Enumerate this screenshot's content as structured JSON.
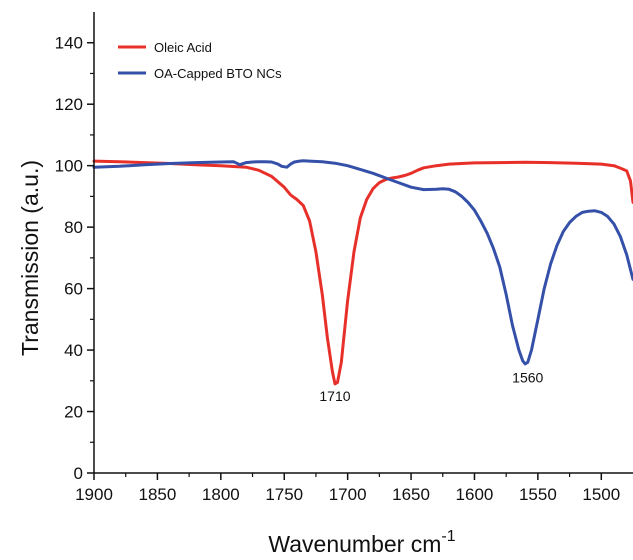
{
  "chart_data": {
    "type": "line",
    "xlabel": "Wavenumber cm",
    "xlabel_sup": "-1",
    "ylabel": "Transmission (a.u.)",
    "xlim": [
      1900,
      1475
    ],
    "ylim": [
      0,
      150
    ],
    "x_ticks": [
      1900,
      1850,
      1800,
      1750,
      1700,
      1650,
      1600,
      1550,
      1500
    ],
    "y_ticks": [
      0,
      20,
      40,
      60,
      80,
      100,
      120,
      140
    ],
    "grid": false,
    "legend_position": "top-left",
    "colors": {
      "oleic": "#e8302a",
      "oa_capped": "#3550a8"
    },
    "series": [
      {
        "name": "Oleic Acid",
        "x": [
          1900,
          1880,
          1860,
          1840,
          1820,
          1800,
          1780,
          1770,
          1760,
          1750,
          1745,
          1740,
          1735,
          1730,
          1725,
          1720,
          1716,
          1712,
          1710,
          1708,
          1705,
          1700,
          1695,
          1690,
          1685,
          1680,
          1675,
          1670,
          1665,
          1660,
          1655,
          1650,
          1645,
          1640,
          1630,
          1620,
          1600,
          1580,
          1560,
          1540,
          1520,
          1500,
          1490,
          1485,
          1480,
          1477,
          1475
        ],
        "y": [
          101.5,
          101.3,
          101,
          100.7,
          100.3,
          100,
          99.5,
          98.5,
          96.5,
          93,
          90.5,
          89,
          87,
          82,
          72,
          58,
          44,
          33,
          29,
          29.5,
          36,
          56,
          72,
          83,
          89,
          92.5,
          94.5,
          95.5,
          96,
          96.3,
          96.8,
          97.5,
          98.5,
          99.3,
          100,
          100.5,
          100.9,
          101,
          101.1,
          101,
          100.8,
          100.5,
          100,
          99.2,
          98.3,
          95,
          88
        ]
      },
      {
        "name": "OA-Capped BTO NCs",
        "x": [
          1900,
          1880,
          1860,
          1840,
          1820,
          1800,
          1790,
          1785,
          1780,
          1775,
          1770,
          1765,
          1760,
          1755,
          1752,
          1748,
          1745,
          1742,
          1738,
          1735,
          1730,
          1720,
          1710,
          1700,
          1690,
          1680,
          1670,
          1660,
          1650,
          1640,
          1630,
          1625,
          1620,
          1615,
          1610,
          1605,
          1600,
          1595,
          1590,
          1585,
          1580,
          1575,
          1570,
          1565,
          1562,
          1560,
          1558,
          1555,
          1550,
          1545,
          1540,
          1535,
          1530,
          1525,
          1520,
          1515,
          1510,
          1505,
          1500,
          1495,
          1490,
          1485,
          1480,
          1475
        ],
        "y": [
          99.5,
          99.8,
          100.3,
          100.7,
          101,
          101.2,
          101.3,
          100.3,
          101,
          101.2,
          101.3,
          101.3,
          101.2,
          100.5,
          99.8,
          99.5,
          100.5,
          101.2,
          101.5,
          101.6,
          101.5,
          101.3,
          100.8,
          100,
          98.8,
          97.5,
          96,
          94.5,
          93,
          92.2,
          92.3,
          92.5,
          92.3,
          91.5,
          90,
          88,
          85.5,
          82,
          78,
          73,
          67,
          58,
          48,
          40,
          36.5,
          35.5,
          36,
          40,
          50,
          60,
          68,
          74,
          78.5,
          81.5,
          83.5,
          84.8,
          85.2,
          85.3,
          84.8,
          83.5,
          81,
          77,
          71,
          63
        ]
      }
    ],
    "annotations": [
      {
        "text": "1710",
        "x": 1710,
        "y": 23.5
      },
      {
        "text": "1560",
        "x": 1558,
        "y": 29.5
      }
    ]
  }
}
